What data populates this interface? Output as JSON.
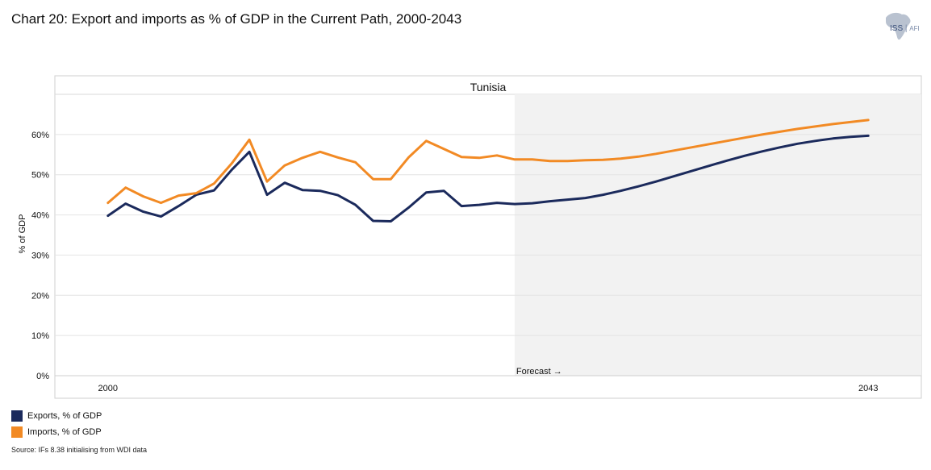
{
  "page": {
    "title": "Chart 20: Export and imports as % of GDP in the Current Path, 2000-2043",
    "logo_main": "ISS",
    "logo_sub": "AFI",
    "source": "Source: IFs 8.38 initialising from WDI data"
  },
  "chart_data": {
    "type": "line",
    "panel_title": "Tunisia",
    "ylabel": "% of GDP",
    "ylim": [
      0,
      70
    ],
    "yticks": [
      0,
      10,
      20,
      30,
      40,
      50,
      60
    ],
    "ytick_labels": [
      "0%",
      "10%",
      "20%",
      "30%",
      "40%",
      "50%",
      "60%"
    ],
    "xlim": [
      1997,
      2046
    ],
    "x_tick_labels": [
      {
        "x": 2000,
        "label": "2000"
      },
      {
        "x": 2043,
        "label": "2043"
      }
    ],
    "forecast_start": 2023,
    "forecast_label": "Forecast →",
    "x": [
      2000,
      2001,
      2002,
      2003,
      2004,
      2005,
      2006,
      2007,
      2008,
      2009,
      2010,
      2011,
      2012,
      2013,
      2014,
      2015,
      2016,
      2017,
      2018,
      2019,
      2020,
      2021,
      2022,
      2023,
      2024,
      2025,
      2026,
      2027,
      2028,
      2029,
      2030,
      2031,
      2032,
      2033,
      2034,
      2035,
      2036,
      2037,
      2038,
      2039,
      2040,
      2041,
      2042,
      2043
    ],
    "series": [
      {
        "name": "Exports, % of GDP",
        "color": "#1b2a5c",
        "values": [
          39.8,
          42.8,
          40.8,
          39.6,
          42.2,
          45.0,
          46.1,
          51.2,
          55.7,
          45.0,
          48.0,
          46.2,
          46.0,
          44.9,
          42.5,
          38.5,
          38.4,
          41.8,
          45.6,
          46.0,
          42.2,
          42.5,
          43.0,
          42.7,
          42.9,
          43.4,
          43.8,
          44.2,
          45.0,
          46.0,
          47.1,
          48.3,
          49.6,
          50.9,
          52.2,
          53.5,
          54.7,
          55.8,
          56.8,
          57.7,
          58.4,
          59.0,
          59.4,
          59.7
        ]
      },
      {
        "name": "Imports, % of GDP",
        "color": "#f28a24",
        "values": [
          43.0,
          46.8,
          44.6,
          43.0,
          44.8,
          45.4,
          47.8,
          52.8,
          58.7,
          48.3,
          52.3,
          54.2,
          55.7,
          54.3,
          53.1,
          48.9,
          48.9,
          54.3,
          58.4,
          56.4,
          54.4,
          54.2,
          54.8,
          53.8,
          53.8,
          53.4,
          53.4,
          53.6,
          53.7,
          54.0,
          54.5,
          55.2,
          56.0,
          56.8,
          57.6,
          58.4,
          59.2,
          60.0,
          60.7,
          61.4,
          62.0,
          62.6,
          63.1,
          63.6
        ]
      }
    ]
  }
}
